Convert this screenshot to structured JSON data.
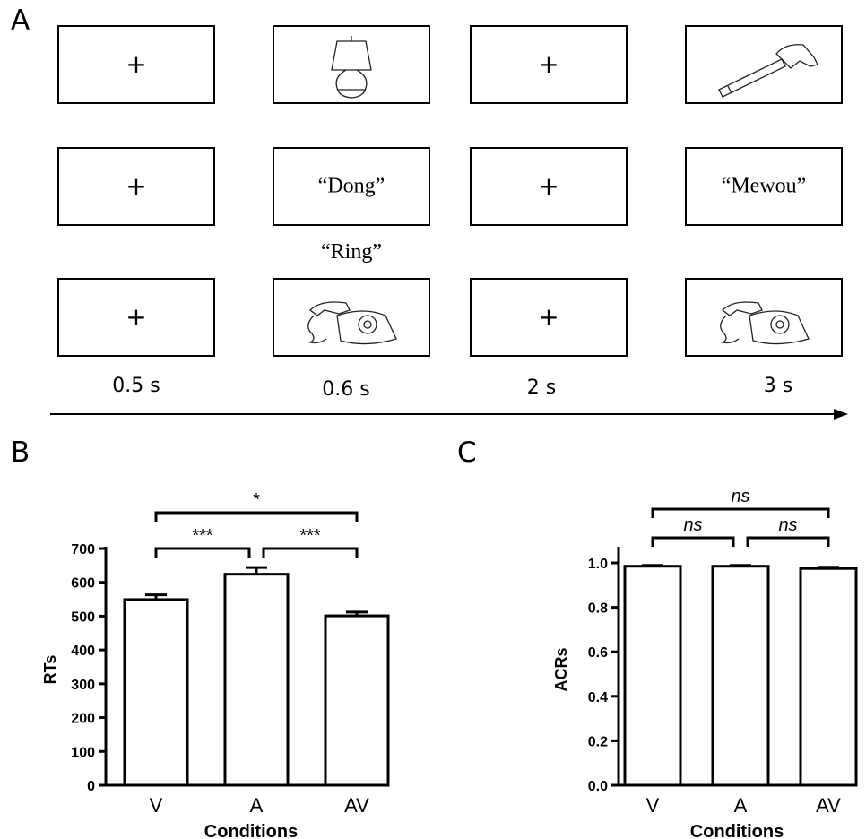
{
  "panels": {
    "a": "A",
    "b": "B",
    "c": "C"
  },
  "trial_rows": [
    {
      "fixation1": "+",
      "stimulus": "lamp-picture",
      "fixation2": "+",
      "probe": "hammer-picture"
    },
    {
      "fixation1": "+",
      "stimulus": "“Dong”",
      "fixation2": "+",
      "probe": "“Mewou”"
    },
    {
      "fixation1": "+",
      "stimulus": "telephone-picture",
      "stimulus_above": "“Ring”",
      "fixation2": "+",
      "probe": "telephone-picture"
    }
  ],
  "durations": [
    "0.5 s",
    "0.6 s",
    "2 s",
    "3 s"
  ],
  "chart_data": [
    {
      "type": "bar",
      "categories": [
        "V",
        "A",
        "AV"
      ],
      "values": [
        549,
        624,
        501
      ],
      "errors": [
        14,
        20,
        11
      ],
      "xlabel": "Conditions",
      "ylabel": "RTs",
      "ylim": [
        0,
        700
      ],
      "yticks": [
        "0",
        "100",
        "200",
        "300",
        "400",
        "500",
        "600",
        "700"
      ],
      "significance": [
        {
          "pair": [
            "V",
            "A"
          ],
          "label": "***"
        },
        {
          "pair": [
            "A",
            "AV"
          ],
          "label": "***"
        },
        {
          "pair": [
            "V",
            "AV"
          ],
          "label": "*"
        }
      ]
    },
    {
      "type": "bar",
      "categories": [
        "V",
        "A",
        "AV"
      ],
      "values": [
        0.985,
        0.985,
        0.975
      ],
      "errors": [
        0.004,
        0.004,
        0.006
      ],
      "xlabel": "Conditions",
      "ylabel": "ACRs",
      "ylim": [
        0,
        1.0
      ],
      "yticks": [
        "0.0",
        "0.2",
        "0.4",
        "0.6",
        "0.8",
        "1.0"
      ],
      "significance": [
        {
          "pair": [
            "V",
            "A"
          ],
          "label": "ns"
        },
        {
          "pair": [
            "A",
            "AV"
          ],
          "label": "ns"
        },
        {
          "pair": [
            "V",
            "AV"
          ],
          "label": "ns"
        }
      ]
    }
  ]
}
